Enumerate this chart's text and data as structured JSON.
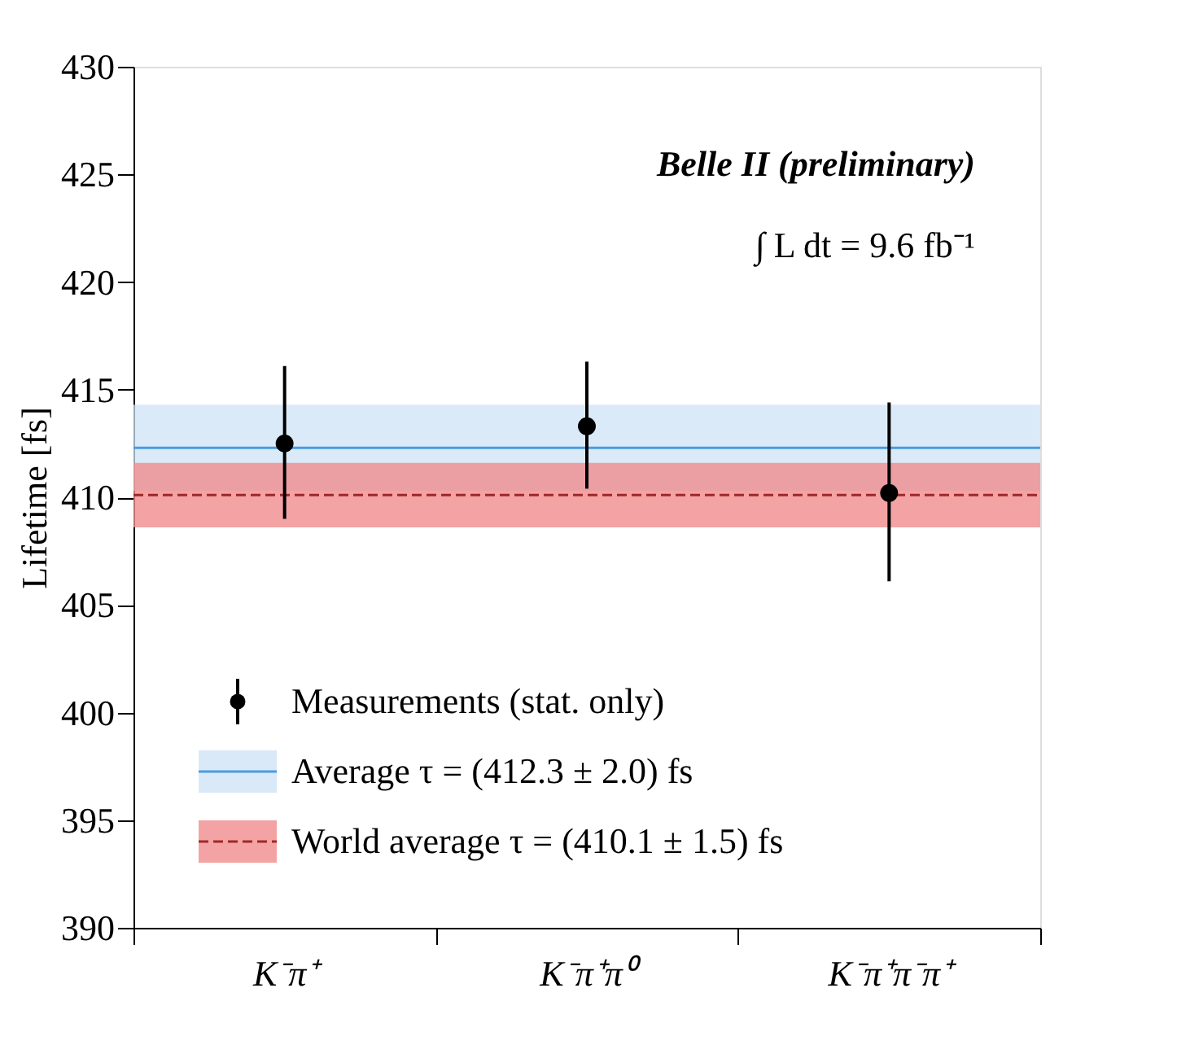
{
  "chart_data": {
    "type": "scatter",
    "ylabel": "Lifetime [fs]",
    "categories": [
      "K⁻π⁺",
      "K⁻π⁺π⁰",
      "K⁻π⁺π⁻π⁺"
    ],
    "series": [
      {
        "name": "Measurements (stat. only)",
        "color": "#000000",
        "values": [
          412.5,
          413.3,
          410.2
        ],
        "errors": [
          [
            409.0,
            416.1
          ],
          [
            410.4,
            416.3
          ],
          [
            406.1,
            414.4
          ]
        ]
      }
    ],
    "bands": [
      {
        "axis": "y",
        "from": 410.3,
        "to": 414.3,
        "label": "Average τ = (412.3 ± 2.0) fs",
        "color": "#cfe3f5"
      },
      {
        "axis": "y",
        "from": 408.6,
        "to": 411.6,
        "label": "World average τ = (410.1 ± 1.5) fs",
        "color": "#f08c8c"
      }
    ],
    "ref_lines": [
      {
        "axis": "y",
        "value": 412.3,
        "color": "#4a9be0",
        "line_style": "solid"
      },
      {
        "axis": "y",
        "value": 410.1,
        "color": "#a02828",
        "line_style": "dashed"
      }
    ],
    "annotations": [
      "Belle II (preliminary)",
      "∫ L dt = 9.6 fb⁻¹"
    ],
    "ylim": [
      390,
      430
    ],
    "yticks": [
      390,
      395,
      400,
      405,
      410,
      415,
      420,
      425,
      430
    ],
    "grid": false,
    "legend": "bottom left",
    "marker": "circle"
  }
}
